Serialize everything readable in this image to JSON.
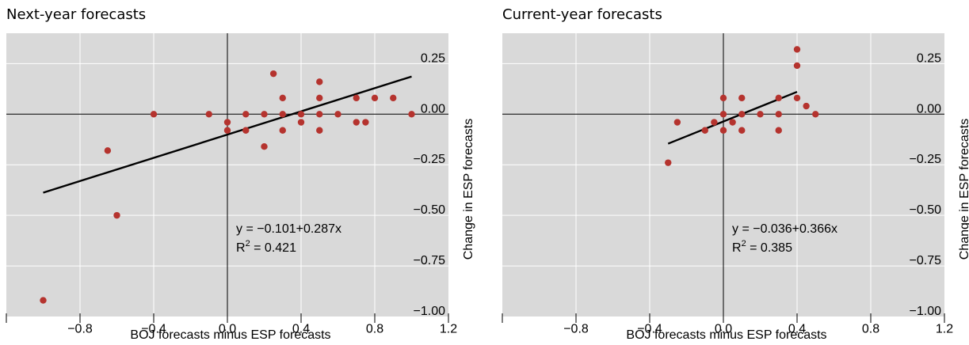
{
  "colors": {
    "panel_bg": "#d9d9d9",
    "grid": "#ffffff",
    "point": "#b5332e",
    "line": "#000000"
  },
  "chart_data": [
    {
      "type": "scatter",
      "title": "Next-year forecasts",
      "xlabel": "BOJ forecasts minus ESP forecasts",
      "ylabel": "Change in ESP forecasts",
      "xlim": [
        -1.2,
        1.2
      ],
      "ylim": [
        -1.0,
        0.4
      ],
      "xticks": [
        -0.8,
        -0.4,
        0.0,
        0.4,
        0.8,
        1.2
      ],
      "xtick_labels": [
        "−0.8",
        "−0.4",
        "0.0",
        "0.4",
        "0.8",
        "1.2"
      ],
      "yticks": [
        0.25,
        0.0,
        -0.25,
        -0.5,
        -0.75,
        -1.0
      ],
      "ytick_labels": [
        "0.25",
        "0.00",
        "−0.25",
        "−0.50",
        "−0.75",
        "−1.00"
      ],
      "grid": true,
      "points": [
        [
          -1.0,
          -0.92
        ],
        [
          -0.65,
          -0.18
        ],
        [
          -0.6,
          -0.5
        ],
        [
          -0.4,
          0.0
        ],
        [
          -0.1,
          0.0
        ],
        [
          0.0,
          -0.04
        ],
        [
          0.0,
          -0.08
        ],
        [
          0.1,
          0.0
        ],
        [
          0.1,
          -0.08
        ],
        [
          0.2,
          0.0
        ],
        [
          0.2,
          -0.16
        ],
        [
          0.25,
          0.2
        ],
        [
          0.3,
          0.08
        ],
        [
          0.3,
          0.0
        ],
        [
          0.3,
          -0.08
        ],
        [
          0.4,
          0.0
        ],
        [
          0.4,
          -0.04
        ],
        [
          0.5,
          0.16
        ],
        [
          0.5,
          0.08
        ],
        [
          0.5,
          0.0
        ],
        [
          0.5,
          -0.08
        ],
        [
          0.6,
          0.0
        ],
        [
          0.7,
          0.08
        ],
        [
          0.7,
          -0.04
        ],
        [
          0.75,
          -0.04
        ],
        [
          0.8,
          0.08
        ],
        [
          0.9,
          0.08
        ],
        [
          1.0,
          0.0
        ]
      ],
      "fit": {
        "intercept": -0.101,
        "slope": 0.287,
        "x_range": [
          -1.0,
          1.0
        ]
      },
      "annotation_eq": "y = −0.101+0.287x",
      "annotation_r2_prefix": "R",
      "annotation_r2_exp": "2",
      "annotation_r2_value": " = 0.421"
    },
    {
      "type": "scatter",
      "title": "Current-year forecasts",
      "xlabel": "BOJ forecasts minus ESP forecasts",
      "ylabel": "Change in ESP forecasts",
      "xlim": [
        -1.2,
        1.2
      ],
      "ylim": [
        -1.0,
        0.4
      ],
      "xticks": [
        -0.8,
        -0.4,
        0.0,
        0.4,
        0.8,
        1.2
      ],
      "xtick_labels": [
        "−0.8",
        "−0.4",
        "0.0",
        "0.4",
        "0.8",
        "1.2"
      ],
      "yticks": [
        0.25,
        0.0,
        -0.25,
        -0.5,
        -0.75,
        -1.0
      ],
      "ytick_labels": [
        "0.25",
        "0.00",
        "−0.25",
        "−0.50",
        "−0.75",
        "−1.00"
      ],
      "grid": true,
      "points": [
        [
          -0.3,
          -0.24
        ],
        [
          -0.25,
          -0.04
        ],
        [
          -0.1,
          -0.08
        ],
        [
          -0.05,
          -0.04
        ],
        [
          0.0,
          0.08
        ],
        [
          0.0,
          0.0
        ],
        [
          0.0,
          -0.08
        ],
        [
          0.05,
          -0.04
        ],
        [
          0.1,
          0.08
        ],
        [
          0.1,
          0.0
        ],
        [
          0.1,
          -0.08
        ],
        [
          0.2,
          0.0
        ],
        [
          0.3,
          0.08
        ],
        [
          0.3,
          0.0
        ],
        [
          0.3,
          -0.08
        ],
        [
          0.4,
          0.32
        ],
        [
          0.4,
          0.24
        ],
        [
          0.4,
          0.08
        ],
        [
          0.45,
          0.04
        ],
        [
          0.5,
          0.0
        ]
      ],
      "fit": {
        "intercept": -0.036,
        "slope": 0.366,
        "x_range": [
          -0.3,
          0.4
        ]
      },
      "annotation_eq": "y = −0.036+0.366x",
      "annotation_r2_prefix": "R",
      "annotation_r2_exp": "2",
      "annotation_r2_value": " = 0.385"
    }
  ]
}
